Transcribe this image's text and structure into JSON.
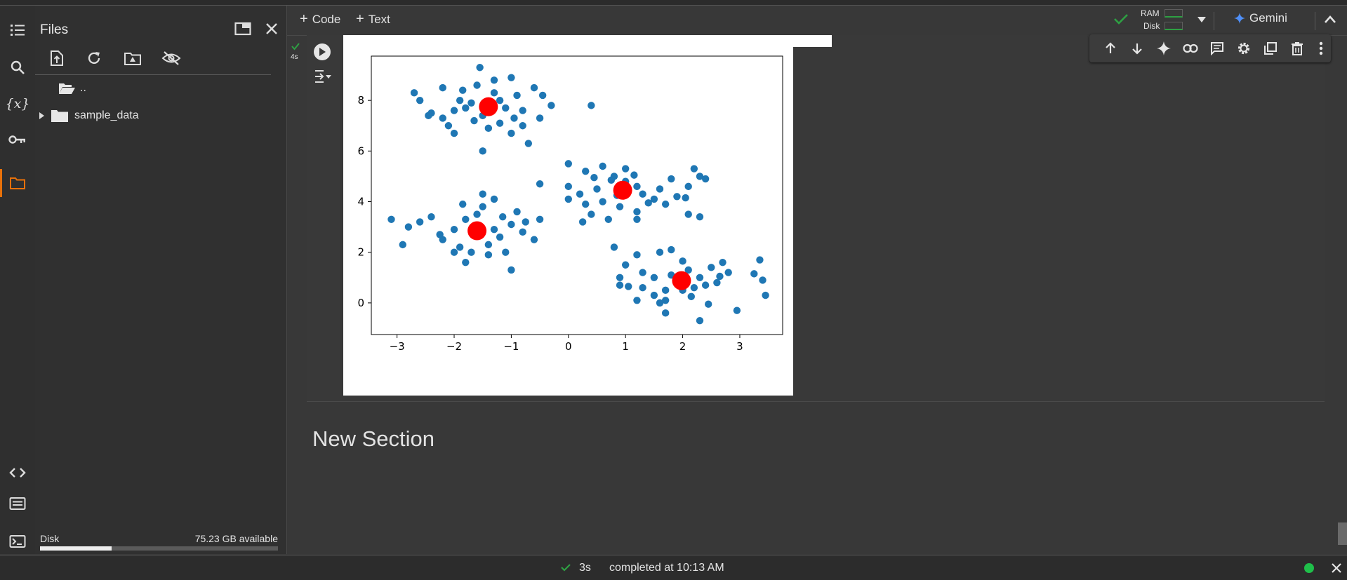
{
  "files_panel": {
    "title": "Files",
    "parent_dir": "..",
    "folder": "sample_data",
    "disk_label": "Disk",
    "disk_available": "75.23 GB available",
    "disk_used_fraction": 0.3
  },
  "toolbar": {
    "code_label": "Code",
    "text_label": "Text",
    "ram_label": "RAM",
    "disk_label": "Disk",
    "gemini_label": "Gemini"
  },
  "cell": {
    "exec_time": "4s"
  },
  "section": {
    "title": "New Section"
  },
  "status": {
    "time": "3s",
    "message": "completed at 10:13 AM"
  },
  "colors": {
    "accent": "#e8710a",
    "point": "#1f77b4",
    "centroid": "#ff0000",
    "success": "#2ea043"
  },
  "chart_data": {
    "type": "scatter",
    "title": "",
    "xlabel": "",
    "ylabel": "",
    "xlim": [
      -3.45,
      3.75
    ],
    "ylim": [
      -1.25,
      9.75
    ],
    "xticks": [
      -3,
      -2,
      -1,
      0,
      1,
      2,
      3
    ],
    "yticks": [
      0,
      2,
      4,
      6,
      8
    ],
    "points": [
      [
        -2.7,
        8.3
      ],
      [
        -2.6,
        8.0
      ],
      [
        -2.4,
        7.5
      ],
      [
        -2.2,
        7.3
      ],
      [
        -2.0,
        7.6
      ],
      [
        -2.2,
        8.5
      ],
      [
        -1.9,
        8.0
      ],
      [
        -1.8,
        7.7
      ],
      [
        -1.6,
        8.6
      ],
      [
        -1.5,
        7.4
      ],
      [
        -1.3,
        8.3
      ],
      [
        -1.1,
        7.7
      ],
      [
        -1.2,
        7.1
      ],
      [
        -0.9,
        8.2
      ],
      [
        -0.8,
        7.6
      ],
      [
        -0.6,
        8.5
      ],
      [
        -0.5,
        7.3
      ],
      [
        -1.4,
        6.9
      ],
      [
        -1.0,
        6.7
      ],
      [
        -2.1,
        7.0
      ],
      [
        -1.5,
        6.0
      ],
      [
        -0.7,
        6.3
      ],
      [
        -1.55,
        9.3
      ],
      [
        -1.3,
        8.8
      ],
      [
        -0.3,
        7.8
      ],
      [
        0.4,
        7.8
      ],
      [
        -2.0,
        6.7
      ],
      [
        -1.7,
        7.9
      ],
      [
        -1.2,
        8.0
      ],
      [
        -1.0,
        8.9
      ],
      [
        -0.8,
        7.0
      ],
      [
        -2.45,
        7.4
      ],
      [
        -1.65,
        7.2
      ],
      [
        -0.45,
        8.2
      ],
      [
        -1.85,
        8.4
      ],
      [
        -0.95,
        7.3
      ],
      [
        -1.5,
        4.3
      ],
      [
        -1.3,
        4.1
      ],
      [
        -1.6,
        3.5
      ],
      [
        -1.8,
        3.3
      ],
      [
        -2.0,
        2.9
      ],
      [
        -2.2,
        2.5
      ],
      [
        -1.9,
        2.2
      ],
      [
        -1.7,
        2.0
      ],
      [
        -1.4,
        2.3
      ],
      [
        -1.2,
        2.6
      ],
      [
        -1.0,
        3.1
      ],
      [
        -0.8,
        2.8
      ],
      [
        -1.1,
        2.0
      ],
      [
        -1.4,
        1.9
      ],
      [
        -1.8,
        1.6
      ],
      [
        -2.0,
        2.0
      ],
      [
        -2.4,
        3.4
      ],
      [
        -2.6,
        3.2
      ],
      [
        -2.8,
        3.0
      ],
      [
        -3.1,
        3.3
      ],
      [
        -2.9,
        2.3
      ],
      [
        -0.5,
        3.3
      ],
      [
        -0.5,
        4.7
      ],
      [
        -1.0,
        1.3
      ],
      [
        -0.9,
        3.6
      ],
      [
        -1.3,
        2.9
      ],
      [
        -1.65,
        2.75
      ],
      [
        -0.6,
        2.5
      ],
      [
        -1.5,
        3.8
      ],
      [
        -2.25,
        2.7
      ],
      [
        -0.75,
        3.2
      ],
      [
        -1.15,
        3.4
      ],
      [
        -1.85,
        3.9
      ],
      [
        0.0,
        5.5
      ],
      [
        0.3,
        5.2
      ],
      [
        0.6,
        5.4
      ],
      [
        0.8,
        5.0
      ],
      [
        1.0,
        4.8
      ],
      [
        1.2,
        4.6
      ],
      [
        1.3,
        4.3
      ],
      [
        1.5,
        4.1
      ],
      [
        1.7,
        3.9
      ],
      [
        1.9,
        4.2
      ],
      [
        2.1,
        4.6
      ],
      [
        2.3,
        5.0
      ],
      [
        2.4,
        4.9
      ],
      [
        2.2,
        5.3
      ],
      [
        0.5,
        4.5
      ],
      [
        0.3,
        3.9
      ],
      [
        0.4,
        3.5
      ],
      [
        0.7,
        3.3
      ],
      [
        0.9,
        3.8
      ],
      [
        1.2,
        3.6
      ],
      [
        1.2,
        3.3
      ],
      [
        0.0,
        4.1
      ],
      [
        0.0,
        4.6
      ],
      [
        1.8,
        4.9
      ],
      [
        2.1,
        3.5
      ],
      [
        2.3,
        3.4
      ],
      [
        0.6,
        4.0
      ],
      [
        1.0,
        5.3
      ],
      [
        1.6,
        4.5
      ],
      [
        0.2,
        4.3
      ],
      [
        0.75,
        4.85
      ],
      [
        1.4,
        3.95
      ],
      [
        0.45,
        4.95
      ],
      [
        2.05,
        4.15
      ],
      [
        1.15,
        5.05
      ],
      [
        0.85,
        4.25
      ],
      [
        0.25,
        3.2
      ],
      [
        0.8,
        2.2
      ],
      [
        1.2,
        1.9
      ],
      [
        1.6,
        2.0
      ],
      [
        1.8,
        2.1
      ],
      [
        1.0,
        1.5
      ],
      [
        0.9,
        1.0
      ],
      [
        1.3,
        1.2
      ],
      [
        1.5,
        1.0
      ],
      [
        1.8,
        1.1
      ],
      [
        2.1,
        1.3
      ],
      [
        2.3,
        1.0
      ],
      [
        2.5,
        1.4
      ],
      [
        2.7,
        1.6
      ],
      [
        2.8,
        1.2
      ],
      [
        2.6,
        0.8
      ],
      [
        2.4,
        0.7
      ],
      [
        2.2,
        0.6
      ],
      [
        2.0,
        0.5
      ],
      [
        1.7,
        0.5
      ],
      [
        1.5,
        0.3
      ],
      [
        1.3,
        0.6
      ],
      [
        1.2,
        0.1
      ],
      [
        1.6,
        0.0
      ],
      [
        1.7,
        0.1
      ],
      [
        1.7,
        -0.4
      ],
      [
        2.3,
        -0.7
      ],
      [
        2.95,
        -0.3
      ],
      [
        2.45,
        -0.05
      ],
      [
        3.25,
        1.15
      ],
      [
        3.4,
        0.9
      ],
      [
        3.35,
        1.7
      ],
      [
        3.45,
        0.3
      ],
      [
        2.0,
        1.65
      ],
      [
        1.05,
        0.65
      ],
      [
        2.65,
        1.05
      ],
      [
        1.9,
        0.9
      ],
      [
        2.15,
        0.25
      ],
      [
        0.9,
        0.7
      ]
    ],
    "centroids": [
      [
        -1.4,
        7.75
      ],
      [
        -1.6,
        2.85
      ],
      [
        0.95,
        4.45
      ],
      [
        1.98,
        0.88
      ]
    ]
  }
}
